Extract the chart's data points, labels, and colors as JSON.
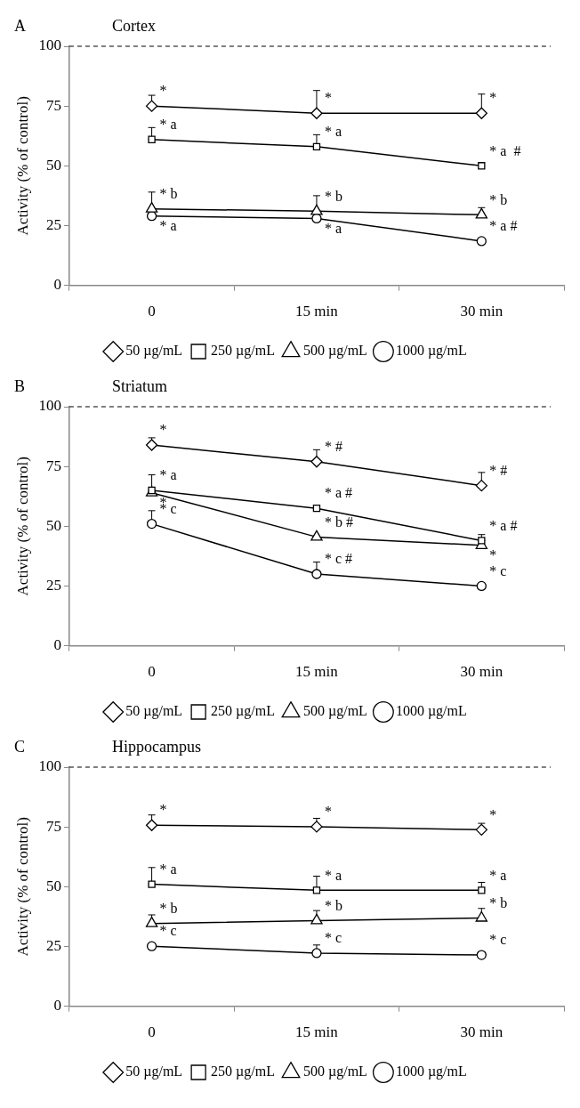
{
  "chart_data": [
    {
      "type": "line",
      "title": "Cortex",
      "ylabel": "Activity (% of control)",
      "categories": [
        "0",
        "15 min",
        "30 min"
      ],
      "ylim": [
        0,
        100
      ],
      "yticks": [
        0,
        25,
        50,
        75,
        100
      ],
      "grid": false,
      "legend": "bottom",
      "series": [
        {
          "name": "50 µg/mL",
          "color": "#000000",
          "marker": "diamond",
          "values": [
            75,
            72,
            72
          ],
          "errors": [
            [
              75,
              79.5
            ],
            [
              72,
              81.5
            ],
            [
              72,
              80
            ]
          ]
        },
        {
          "name": "250 µg/mL",
          "color": "#000000",
          "marker": "square",
          "values": [
            61,
            58,
            50
          ],
          "errors": [
            [
              61,
              66
            ],
            [
              58,
              63
            ],
            null
          ]
        },
        {
          "name": "500 µg/mL",
          "color": "#000000",
          "marker": "triangle",
          "values": [
            32,
            31,
            29.5
          ],
          "errors": [
            [
              32,
              39
            ],
            [
              31,
              37.5
            ],
            [
              29.5,
              32.5
            ]
          ]
        },
        {
          "name": "1000 µg/mL",
          "color": "#000000",
          "marker": "circle",
          "values": [
            29,
            28,
            18.5
          ],
          "errors": [
            null,
            null,
            null
          ]
        }
      ],
      "ref_lines": [
        {
          "axis": "y",
          "value": 100,
          "line_style": "dashed",
          "color": "#000000"
        }
      ],
      "annotations": [
        "A",
        {
          "text": "*",
          "x": "0",
          "y": 75
        },
        {
          "text": "* a",
          "x": "0",
          "y": 61
        },
        {
          "text": "* b",
          "x": "0",
          "y": 32
        },
        {
          "text": "* a",
          "x": "0",
          "y": 29
        },
        {
          "text": "*",
          "x": "15 min",
          "y": 72
        },
        {
          "text": "* a",
          "x": "15 min",
          "y": 58
        },
        {
          "text": "* b",
          "x": "15 min",
          "y": 31
        },
        {
          "text": "* a",
          "x": "15 min",
          "y": 28
        },
        {
          "text": "*",
          "x": "30 min",
          "y": 72
        },
        {
          "text": "* a  #",
          "x": "30 min",
          "y": 50
        },
        {
          "text": "* b",
          "x": "30 min",
          "y": 29.5
        },
        {
          "text": "* a #",
          "x": "30 min",
          "y": 18.5
        }
      ]
    },
    {
      "type": "line",
      "title": "Striatum",
      "ylabel": "Activity (% of control)",
      "categories": [
        "0",
        "15 min",
        "30 min"
      ],
      "ylim": [
        0,
        100
      ],
      "yticks": [
        0,
        25,
        50,
        75,
        100
      ],
      "grid": false,
      "legend": "bottom",
      "series": [
        {
          "name": "50 µg/mL",
          "color": "#000000",
          "marker": "diamond",
          "values": [
            84,
            77,
            67
          ],
          "errors": [
            [
              84,
              87
            ],
            [
              77,
              82
            ],
            [
              67,
              72.5
            ]
          ]
        },
        {
          "name": "250 µg/mL",
          "color": "#000000",
          "marker": "square",
          "values": [
            65,
            57.5,
            44
          ],
          "errors": [
            [
              65,
              71.5
            ],
            null,
            [
              44,
              46.5
            ]
          ]
        },
        {
          "name": "500 µg/mL",
          "color": "#000000",
          "marker": "triangle",
          "values": [
            64,
            45.5,
            42
          ],
          "errors": [
            null,
            null,
            null
          ]
        },
        {
          "name": "1000 µg/mL",
          "color": "#000000",
          "marker": "circle",
          "values": [
            51,
            30,
            25
          ],
          "errors": [
            [
              51,
              56.5
            ],
            [
              30,
              35
            ],
            null
          ]
        }
      ],
      "ref_lines": [
        {
          "axis": "y",
          "value": 100,
          "line_style": "dashed",
          "color": "#000000"
        }
      ],
      "annotations": [
        "B",
        {
          "text": "*",
          "x": "0",
          "y": 84
        },
        {
          "text": "* a",
          "x": "0",
          "y": 65
        },
        {
          "text": "*",
          "x": "0",
          "y": 64
        },
        {
          "text": "* c",
          "x": "0",
          "y": 51
        },
        {
          "text": "* #",
          "x": "15 min",
          "y": 77
        },
        {
          "text": "* a #",
          "x": "15 min",
          "y": 57.5
        },
        {
          "text": "* b #",
          "x": "15 min",
          "y": 45.5
        },
        {
          "text": "* c #",
          "x": "15 min",
          "y": 30
        },
        {
          "text": "* #",
          "x": "30 min",
          "y": 67
        },
        {
          "text": "* a #",
          "x": "30 min",
          "y": 44
        },
        {
          "text": "*",
          "x": "30 min",
          "y": 42
        },
        {
          "text": "* c",
          "x": "30 min",
          "y": 25
        }
      ]
    },
    {
      "type": "line",
      "title": "Hippocampus",
      "ylabel": "Activity (% of control)",
      "categories": [
        "0",
        "15 min",
        "30 min"
      ],
      "ylim": [
        0,
        100
      ],
      "yticks": [
        0,
        25,
        50,
        75,
        100
      ],
      "grid": false,
      "legend": "bottom",
      "series": [
        {
          "name": "50 µg/mL",
          "color": "#000000",
          "marker": "diamond",
          "values": [
            75.7,
            75.1,
            73.8
          ],
          "errors": [
            [
              75.7,
              80
            ],
            [
              75.1,
              78.6
            ],
            [
              73.8,
              76.5
            ]
          ]
        },
        {
          "name": "250 µg/mL",
          "color": "#000000",
          "marker": "square",
          "values": [
            51,
            48.5,
            48.5
          ],
          "errors": [
            [
              51,
              58
            ],
            [
              48.5,
              54.4
            ],
            [
              48.5,
              51.8
            ]
          ]
        },
        {
          "name": "500 µg/mL",
          "color": "#000000",
          "marker": "triangle",
          "values": [
            34.6,
            35.8,
            36.9
          ],
          "errors": [
            [
              34.6,
              38.2
            ],
            [
              35.8,
              40
            ],
            [
              36.9,
              40.9
            ]
          ]
        },
        {
          "name": "1000 µg/mL",
          "color": "#000000",
          "marker": "circle",
          "values": [
            25.1,
            22.2,
            21.4
          ],
          "errors": [
            null,
            [
              22.2,
              25.6
            ],
            null
          ]
        }
      ],
      "ref_lines": [
        {
          "axis": "y",
          "value": 100,
          "line_style": "dashed",
          "color": "#000000"
        }
      ],
      "annotations": [
        "C",
        {
          "text": "*",
          "x": "0",
          "y": 75.7
        },
        {
          "text": "* a",
          "x": "0",
          "y": 51
        },
        {
          "text": "* b",
          "x": "0",
          "y": 34.6
        },
        {
          "text": "* c",
          "x": "0",
          "y": 25.1
        },
        {
          "text": "*",
          "x": "15 min",
          "y": 75.1
        },
        {
          "text": "* a",
          "x": "15 min",
          "y": 48.5
        },
        {
          "text": "* b",
          "x": "15 min",
          "y": 35.8
        },
        {
          "text": "* c",
          "x": "15 min",
          "y": 22.2
        },
        {
          "text": "*",
          "x": "30 min",
          "y": 73.8
        },
        {
          "text": "* a",
          "x": "30 min",
          "y": 48.5
        },
        {
          "text": "* b",
          "x": "30 min",
          "y": 36.9
        },
        {
          "text": "* c",
          "x": "30 min",
          "y": 21.4
        }
      ]
    }
  ]
}
